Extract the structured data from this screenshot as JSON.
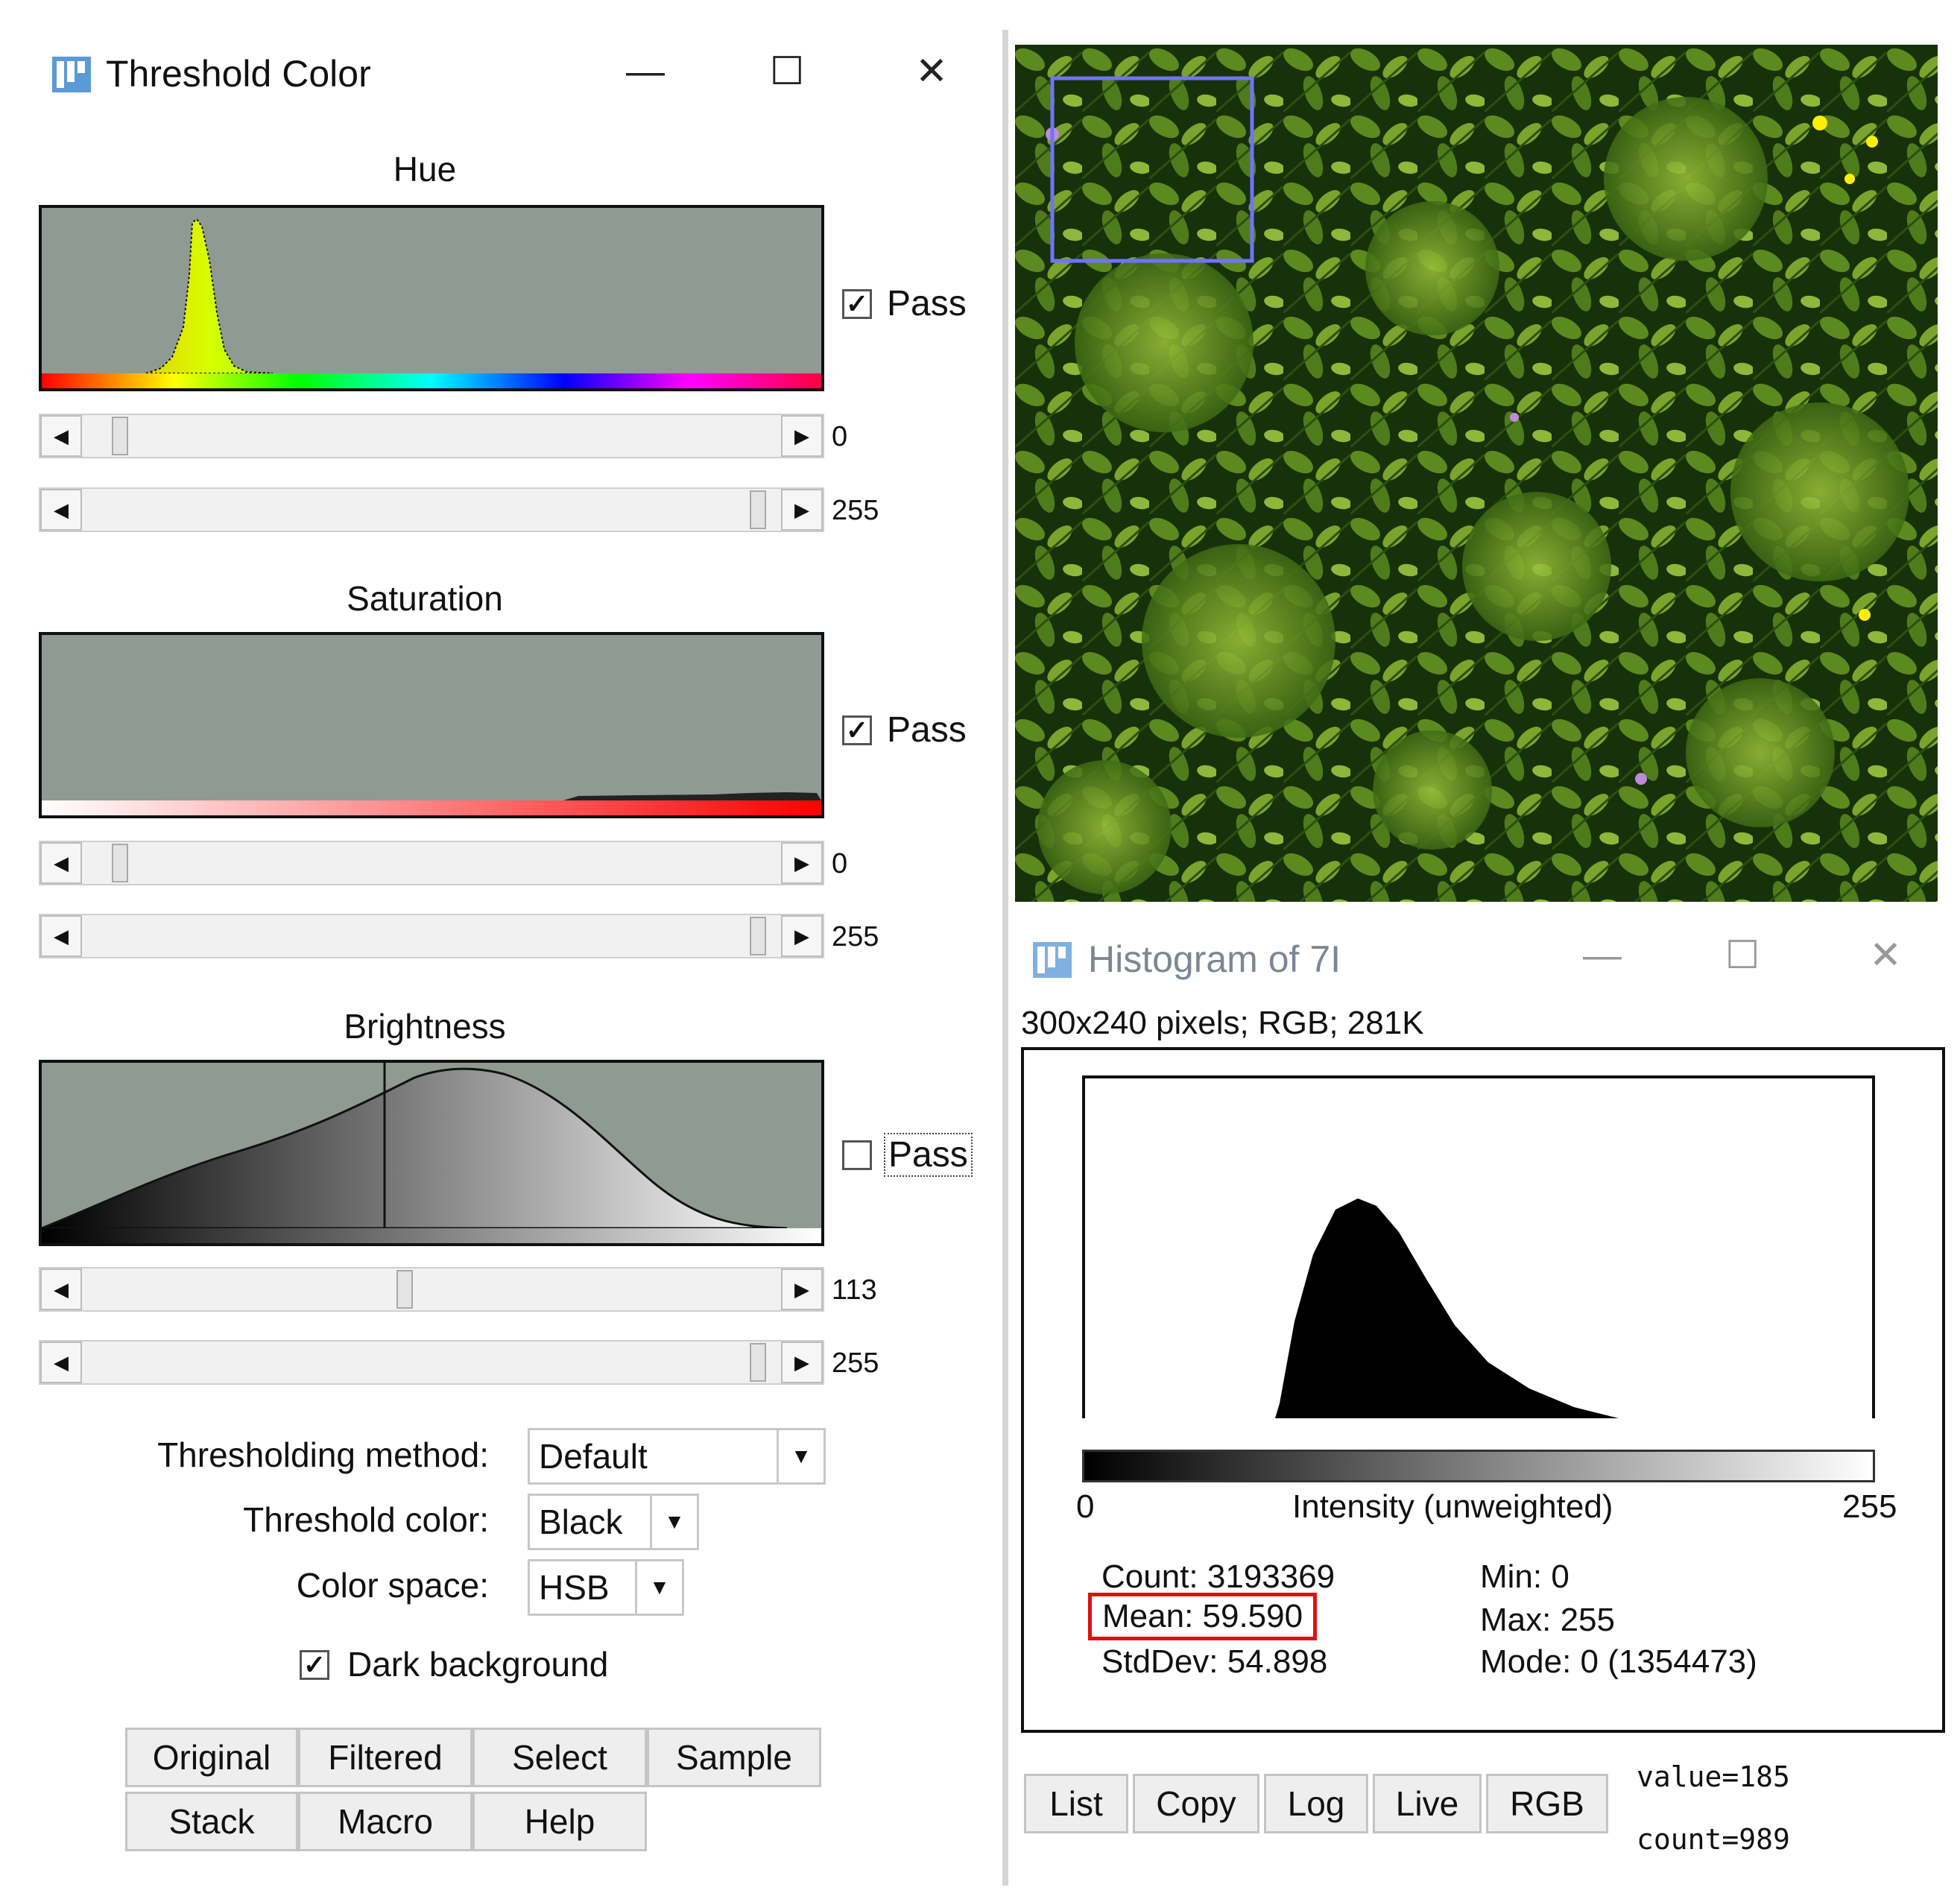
{
  "threshold_window": {
    "title": "Threshold Color",
    "icon": "imagej-icon",
    "controls": {
      "minimize": "—",
      "maximize": "☐",
      "close": "✕"
    },
    "sections": [
      {
        "title": "Hue",
        "pass_label": "Pass",
        "pass_checked": true,
        "min_value": "0",
        "max_value": "255"
      },
      {
        "title": "Saturation",
        "pass_label": "Pass",
        "pass_checked": true,
        "min_value": "0",
        "max_value": "255"
      },
      {
        "title": "Brightness",
        "pass_label": "Pass",
        "pass_checked": false,
        "min_value": "113",
        "max_value": "255"
      }
    ],
    "form": {
      "method_label": "Thresholding method:",
      "method_value": "Default",
      "color_label": "Threshold color:",
      "color_value": "Black",
      "space_label": "Color space:",
      "space_value": "HSB",
      "dark_background_label": "Dark background",
      "dark_background_checked": true
    },
    "buttons": [
      "Original",
      "Filtered",
      "Select",
      "Sample",
      "Stack",
      "Macro",
      "Help"
    ]
  },
  "histogram_window": {
    "title": "Histogram of 7I",
    "info": "300x240 pixels; RGB; 281K",
    "axis_min": "0",
    "axis_label": "Intensity (unweighted)",
    "axis_max": "255",
    "stats": {
      "count": "Count: 3193369",
      "mean": "Mean: 59.590",
      "stddev": "StdDev: 54.898",
      "min": "Min: 0",
      "max": "Max: 255",
      "mode": "Mode: 0 (1354473)"
    },
    "buttons": [
      "List",
      "Copy",
      "Log",
      "Live",
      "RGB"
    ],
    "readout_value": "value=185",
    "readout_count": "count=989"
  },
  "colors": {
    "histogram_bg": "#8f9a93",
    "highlight_box": "#e01010",
    "roi_rect": "#6f73ff",
    "title_grey": "#7b8794"
  }
}
